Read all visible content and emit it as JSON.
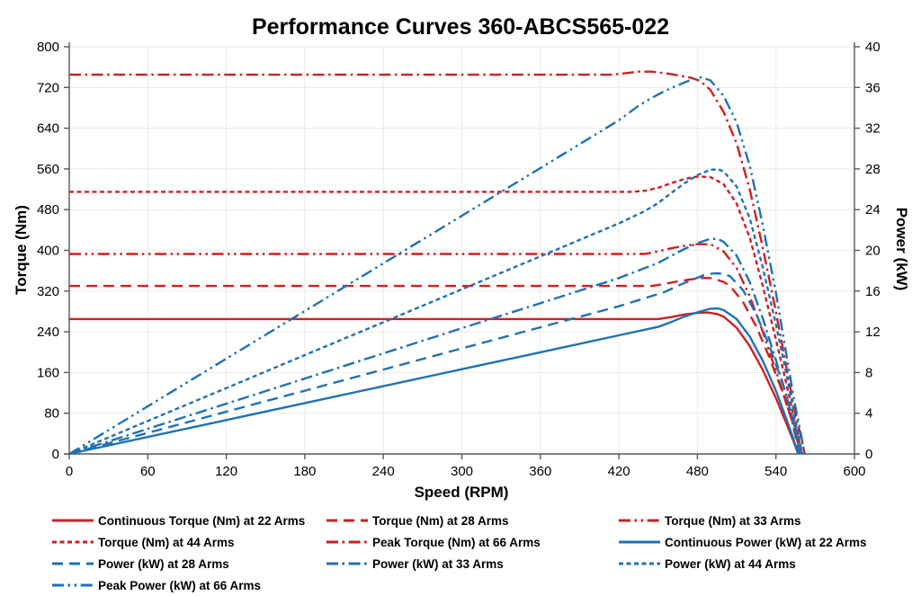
{
  "chart_data": {
    "type": "line",
    "title": "Performance Curves 360-ABCS565-022",
    "xlabel": "Speed (RPM)",
    "ylabel_left": "Torque (Nm)",
    "ylabel_right": "Power (kW)",
    "xlim": [
      0,
      600
    ],
    "ylim_left": [
      0,
      800
    ],
    "ylim_right": [
      0,
      40
    ],
    "x_ticks": [
      0,
      60,
      120,
      180,
      240,
      300,
      360,
      420,
      480,
      540,
      600
    ],
    "y_ticks_left": [
      0,
      80,
      160,
      240,
      320,
      400,
      480,
      560,
      640,
      720,
      800
    ],
    "y_ticks_right": [
      0,
      4,
      8,
      12,
      16,
      20,
      24,
      28,
      32,
      36,
      40
    ],
    "grid": true,
    "legend_position": "bottom",
    "colors": {
      "torque_red": "#d01f1f",
      "power_blue": "#1f72b5",
      "grid": "#e9e9e9",
      "axis": "#595959",
      "text": "#000000"
    },
    "series": [
      {
        "name": "Continuous Torque (Nm) at 22 Arms",
        "axis": "left",
        "color": "torque_red",
        "dash": "solid",
        "points": [
          [
            0,
            265
          ],
          [
            450,
            265
          ],
          [
            460,
            269
          ],
          [
            470,
            274
          ],
          [
            480,
            277
          ],
          [
            488,
            278
          ],
          [
            495,
            275
          ],
          [
            500,
            270
          ],
          [
            510,
            248
          ],
          [
            520,
            212
          ],
          [
            530,
            165
          ],
          [
            540,
            110
          ],
          [
            548,
            60
          ],
          [
            553,
            28
          ],
          [
            557,
            0
          ]
        ]
      },
      {
        "name": "Torque (Nm) at 28 Arms",
        "axis": "left",
        "color": "torque_red",
        "dash": "long-dash",
        "points": [
          [
            0,
            330
          ],
          [
            445,
            330
          ],
          [
            455,
            334
          ],
          [
            465,
            339
          ],
          [
            475,
            343
          ],
          [
            485,
            346
          ],
          [
            492,
            345
          ],
          [
            500,
            338
          ],
          [
            505,
            330
          ],
          [
            515,
            298
          ],
          [
            525,
            250
          ],
          [
            535,
            190
          ],
          [
            545,
            122
          ],
          [
            552,
            68
          ],
          [
            558,
            0
          ]
        ]
      },
      {
        "name": "Torque (Nm) at 33 Arms",
        "axis": "left",
        "color": "torque_red",
        "dash": "dash-dot-dot",
        "points": [
          [
            0,
            393
          ],
          [
            440,
            393
          ],
          [
            450,
            398
          ],
          [
            460,
            404
          ],
          [
            470,
            409
          ],
          [
            480,
            412
          ],
          [
            490,
            412
          ],
          [
            500,
            398
          ],
          [
            510,
            365
          ],
          [
            520,
            310
          ],
          [
            530,
            240
          ],
          [
            540,
            163
          ],
          [
            548,
            100
          ],
          [
            554,
            50
          ],
          [
            559,
            0
          ]
        ]
      },
      {
        "name": "Torque (Nm) at 44 Arms",
        "axis": "left",
        "color": "torque_red",
        "dash": "short-dash",
        "points": [
          [
            0,
            515
          ],
          [
            430,
            515
          ],
          [
            440,
            517
          ],
          [
            450,
            523
          ],
          [
            460,
            532
          ],
          [
            470,
            540
          ],
          [
            480,
            545
          ],
          [
            490,
            544
          ],
          [
            500,
            530
          ],
          [
            510,
            492
          ],
          [
            520,
            425
          ],
          [
            530,
            330
          ],
          [
            540,
            225
          ],
          [
            548,
            138
          ],
          [
            554,
            68
          ],
          [
            560,
            0
          ]
        ]
      },
      {
        "name": "Peak Torque (Nm) at 66 Arms",
        "axis": "left",
        "color": "torque_red",
        "dash": "dash-dot",
        "points": [
          [
            0,
            745
          ],
          [
            415,
            745
          ],
          [
            425,
            748
          ],
          [
            435,
            751
          ],
          [
            445,
            751
          ],
          [
            455,
            748
          ],
          [
            465,
            744
          ],
          [
            475,
            739
          ],
          [
            482,
            733
          ],
          [
            490,
            715
          ],
          [
            500,
            672
          ],
          [
            510,
            610
          ],
          [
            520,
            520
          ],
          [
            530,
            405
          ],
          [
            540,
            280
          ],
          [
            548,
            170
          ],
          [
            554,
            90
          ],
          [
            559,
            35
          ],
          [
            562,
            0
          ]
        ]
      },
      {
        "name": "Continuous Power (kW) at 22 Arms",
        "axis": "right",
        "color": "power_blue",
        "dash": "solid",
        "points": [
          [
            0,
            0
          ],
          [
            60,
            1.67
          ],
          [
            120,
            3.33
          ],
          [
            180,
            5.0
          ],
          [
            240,
            6.66
          ],
          [
            300,
            8.33
          ],
          [
            360,
            9.99
          ],
          [
            420,
            11.66
          ],
          [
            450,
            12.49
          ],
          [
            460,
            12.96
          ],
          [
            470,
            13.49
          ],
          [
            480,
            13.92
          ],
          [
            490,
            14.27
          ],
          [
            496,
            14.3
          ],
          [
            500,
            14.14
          ],
          [
            510,
            13.25
          ],
          [
            520,
            11.54
          ],
          [
            530,
            9.16
          ],
          [
            540,
            6.22
          ],
          [
            548,
            3.44
          ],
          [
            553,
            1.62
          ],
          [
            557,
            0
          ]
        ]
      },
      {
        "name": "Power (kW) at 28 Arms",
        "axis": "right",
        "color": "power_blue",
        "dash": "long-dash",
        "points": [
          [
            0,
            0
          ],
          [
            60,
            2.07
          ],
          [
            120,
            4.15
          ],
          [
            180,
            6.22
          ],
          [
            240,
            8.29
          ],
          [
            300,
            10.37
          ],
          [
            360,
            12.44
          ],
          [
            420,
            14.51
          ],
          [
            455,
            15.91
          ],
          [
            465,
            16.51
          ],
          [
            475,
            17.06
          ],
          [
            485,
            17.57
          ],
          [
            493,
            17.75
          ],
          [
            500,
            17.7
          ],
          [
            505,
            17.45
          ],
          [
            515,
            16.07
          ],
          [
            525,
            13.74
          ],
          [
            535,
            10.64
          ],
          [
            545,
            6.96
          ],
          [
            552,
            3.93
          ],
          [
            558,
            0
          ]
        ]
      },
      {
        "name": "Power (kW) at 33 Arms",
        "axis": "right",
        "color": "power_blue",
        "dash": "dash-dot",
        "points": [
          [
            0,
            0
          ],
          [
            60,
            2.47
          ],
          [
            120,
            4.94
          ],
          [
            180,
            7.41
          ],
          [
            240,
            9.88
          ],
          [
            300,
            12.35
          ],
          [
            360,
            14.81
          ],
          [
            420,
            17.28
          ],
          [
            450,
            18.76
          ],
          [
            460,
            19.46
          ],
          [
            470,
            20.13
          ],
          [
            480,
            20.71
          ],
          [
            490,
            21.14
          ],
          [
            496,
            21.1
          ],
          [
            500,
            20.84
          ],
          [
            510,
            19.49
          ],
          [
            520,
            16.88
          ],
          [
            530,
            13.32
          ],
          [
            540,
            9.22
          ],
          [
            548,
            5.74
          ],
          [
            554,
            2.9
          ],
          [
            559,
            0
          ]
        ]
      },
      {
        "name": "Power (kW) at 44 Arms",
        "axis": "right",
        "color": "power_blue",
        "dash": "short-dash",
        "points": [
          [
            0,
            0
          ],
          [
            60,
            3.24
          ],
          [
            120,
            6.47
          ],
          [
            180,
            9.71
          ],
          [
            240,
            12.94
          ],
          [
            300,
            16.18
          ],
          [
            360,
            19.41
          ],
          [
            420,
            22.65
          ],
          [
            440,
            23.87
          ],
          [
            450,
            24.65
          ],
          [
            460,
            25.63
          ],
          [
            470,
            26.58
          ],
          [
            480,
            27.39
          ],
          [
            490,
            27.92
          ],
          [
            496,
            27.95
          ],
          [
            500,
            27.75
          ],
          [
            510,
            26.28
          ],
          [
            520,
            23.14
          ],
          [
            530,
            18.32
          ],
          [
            540,
            12.72
          ],
          [
            548,
            7.92
          ],
          [
            554,
            3.94
          ],
          [
            560,
            0
          ]
        ]
      },
      {
        "name": "Peak Power (kW) at 66 Arms",
        "axis": "right",
        "color": "power_blue",
        "dash": "dash-dot-dot",
        "points": [
          [
            0,
            0
          ],
          [
            60,
            4.68
          ],
          [
            120,
            9.36
          ],
          [
            180,
            14.04
          ],
          [
            240,
            18.72
          ],
          [
            300,
            23.4
          ],
          [
            360,
            28.08
          ],
          [
            420,
            32.78
          ],
          [
            435,
            34.2
          ],
          [
            445,
            34.98
          ],
          [
            455,
            35.65
          ],
          [
            465,
            36.22
          ],
          [
            475,
            36.74
          ],
          [
            483,
            37.0
          ],
          [
            490,
            36.7
          ],
          [
            500,
            35.18
          ],
          [
            510,
            32.57
          ],
          [
            520,
            28.31
          ],
          [
            530,
            22.48
          ],
          [
            540,
            15.83
          ],
          [
            548,
            9.77
          ],
          [
            554,
            5.23
          ],
          [
            559,
            2.05
          ],
          [
            562,
            0
          ]
        ]
      }
    ]
  }
}
